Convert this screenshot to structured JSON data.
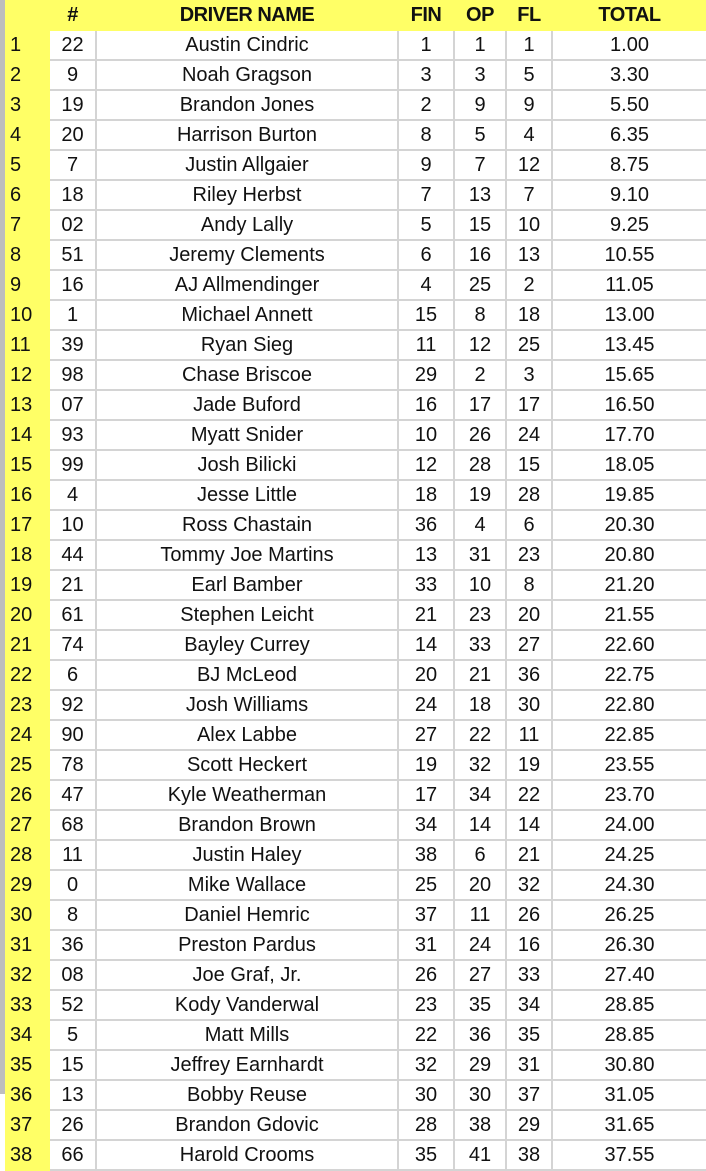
{
  "header": {
    "rank": "",
    "num": "#",
    "driver": "DRIVER NAME",
    "fin": "FIN",
    "op": "OP",
    "fl": "FL",
    "total": "TOTAL"
  },
  "colors": {
    "highlight": "#ffff66",
    "grid": "#d4d4d4"
  },
  "rows": [
    {
      "rank": "1",
      "num": "22",
      "driver": "Austin Cindric",
      "fin": "1",
      "op": "1",
      "fl": "1",
      "total": "1.00"
    },
    {
      "rank": "2",
      "num": "9",
      "driver": "Noah Gragson",
      "fin": "3",
      "op": "3",
      "fl": "5",
      "total": "3.30"
    },
    {
      "rank": "3",
      "num": "19",
      "driver": "Brandon Jones",
      "fin": "2",
      "op": "9",
      "fl": "9",
      "total": "5.50"
    },
    {
      "rank": "4",
      "num": "20",
      "driver": "Harrison Burton",
      "fin": "8",
      "op": "5",
      "fl": "4",
      "total": "6.35"
    },
    {
      "rank": "5",
      "num": "7",
      "driver": "Justin Allgaier",
      "fin": "9",
      "op": "7",
      "fl": "12",
      "total": "8.75"
    },
    {
      "rank": "6",
      "num": "18",
      "driver": "Riley Herbst",
      "fin": "7",
      "op": "13",
      "fl": "7",
      "total": "9.10"
    },
    {
      "rank": "7",
      "num": "02",
      "driver": "Andy Lally",
      "fin": "5",
      "op": "15",
      "fl": "10",
      "total": "9.25"
    },
    {
      "rank": "8",
      "num": "51",
      "driver": "Jeremy Clements",
      "fin": "6",
      "op": "16",
      "fl": "13",
      "total": "10.55"
    },
    {
      "rank": "9",
      "num": "16",
      "driver": "AJ Allmendinger",
      "fin": "4",
      "op": "25",
      "fl": "2",
      "total": "11.05"
    },
    {
      "rank": "10",
      "num": "1",
      "driver": "Michael Annett",
      "fin": "15",
      "op": "8",
      "fl": "18",
      "total": "13.00"
    },
    {
      "rank": "11",
      "num": "39",
      "driver": "Ryan Sieg",
      "fin": "11",
      "op": "12",
      "fl": "25",
      "total": "13.45"
    },
    {
      "rank": "12",
      "num": "98",
      "driver": "Chase Briscoe",
      "fin": "29",
      "op": "2",
      "fl": "3",
      "total": "15.65"
    },
    {
      "rank": "13",
      "num": "07",
      "driver": "Jade Buford",
      "fin": "16",
      "op": "17",
      "fl": "17",
      "total": "16.50"
    },
    {
      "rank": "14",
      "num": "93",
      "driver": "Myatt Snider",
      "fin": "10",
      "op": "26",
      "fl": "24",
      "total": "17.70"
    },
    {
      "rank": "15",
      "num": "99",
      "driver": "Josh Bilicki",
      "fin": "12",
      "op": "28",
      "fl": "15",
      "total": "18.05"
    },
    {
      "rank": "16",
      "num": "4",
      "driver": "Jesse Little",
      "fin": "18",
      "op": "19",
      "fl": "28",
      "total": "19.85"
    },
    {
      "rank": "17",
      "num": "10",
      "driver": "Ross Chastain",
      "fin": "36",
      "op": "4",
      "fl": "6",
      "total": "20.30"
    },
    {
      "rank": "18",
      "num": "44",
      "driver": "Tommy Joe Martins",
      "fin": "13",
      "op": "31",
      "fl": "23",
      "total": "20.80"
    },
    {
      "rank": "19",
      "num": "21",
      "driver": "Earl Bamber",
      "fin": "33",
      "op": "10",
      "fl": "8",
      "total": "21.20"
    },
    {
      "rank": "20",
      "num": "61",
      "driver": "Stephen Leicht",
      "fin": "21",
      "op": "23",
      "fl": "20",
      "total": "21.55"
    },
    {
      "rank": "21",
      "num": "74",
      "driver": "Bayley Currey",
      "fin": "14",
      "op": "33",
      "fl": "27",
      "total": "22.60"
    },
    {
      "rank": "22",
      "num": "6",
      "driver": "BJ McLeod",
      "fin": "20",
      "op": "21",
      "fl": "36",
      "total": "22.75"
    },
    {
      "rank": "23",
      "num": "92",
      "driver": "Josh Williams",
      "fin": "24",
      "op": "18",
      "fl": "30",
      "total": "22.80"
    },
    {
      "rank": "24",
      "num": "90",
      "driver": "Alex Labbe",
      "fin": "27",
      "op": "22",
      "fl": "11",
      "total": "22.85"
    },
    {
      "rank": "25",
      "num": "78",
      "driver": "Scott Heckert",
      "fin": "19",
      "op": "32",
      "fl": "19",
      "total": "23.55"
    },
    {
      "rank": "26",
      "num": "47",
      "driver": "Kyle Weatherman",
      "fin": "17",
      "op": "34",
      "fl": "22",
      "total": "23.70"
    },
    {
      "rank": "27",
      "num": "68",
      "driver": "Brandon Brown",
      "fin": "34",
      "op": "14",
      "fl": "14",
      "total": "24.00"
    },
    {
      "rank": "28",
      "num": "11",
      "driver": "Justin Haley",
      "fin": "38",
      "op": "6",
      "fl": "21",
      "total": "24.25"
    },
    {
      "rank": "29",
      "num": "0",
      "driver": "Mike Wallace",
      "fin": "25",
      "op": "20",
      "fl": "32",
      "total": "24.30"
    },
    {
      "rank": "30",
      "num": "8",
      "driver": "Daniel Hemric",
      "fin": "37",
      "op": "11",
      "fl": "26",
      "total": "26.25"
    },
    {
      "rank": "31",
      "num": "36",
      "driver": "Preston Pardus",
      "fin": "31",
      "op": "24",
      "fl": "16",
      "total": "26.30"
    },
    {
      "rank": "32",
      "num": "08",
      "driver": "Joe Graf, Jr.",
      "fin": "26",
      "op": "27",
      "fl": "33",
      "total": "27.40"
    },
    {
      "rank": "33",
      "num": "52",
      "driver": "Kody Vanderwal",
      "fin": "23",
      "op": "35",
      "fl": "34",
      "total": "28.85"
    },
    {
      "rank": "34",
      "num": "5",
      "driver": "Matt Mills",
      "fin": "22",
      "op": "36",
      "fl": "35",
      "total": "28.85"
    },
    {
      "rank": "35",
      "num": "15",
      "driver": "Jeffrey Earnhardt",
      "fin": "32",
      "op": "29",
      "fl": "31",
      "total": "30.80"
    },
    {
      "rank": "36",
      "num": "13",
      "driver": "Bobby Reuse",
      "fin": "30",
      "op": "30",
      "fl": "37",
      "total": "31.05"
    },
    {
      "rank": "37",
      "num": "26",
      "driver": "Brandon Gdovic",
      "fin": "28",
      "op": "38",
      "fl": "29",
      "total": "31.65"
    },
    {
      "rank": "38",
      "num": "66",
      "driver": "Harold Crooms",
      "fin": "35",
      "op": "41",
      "fl": "38",
      "total": "37.55"
    }
  ]
}
